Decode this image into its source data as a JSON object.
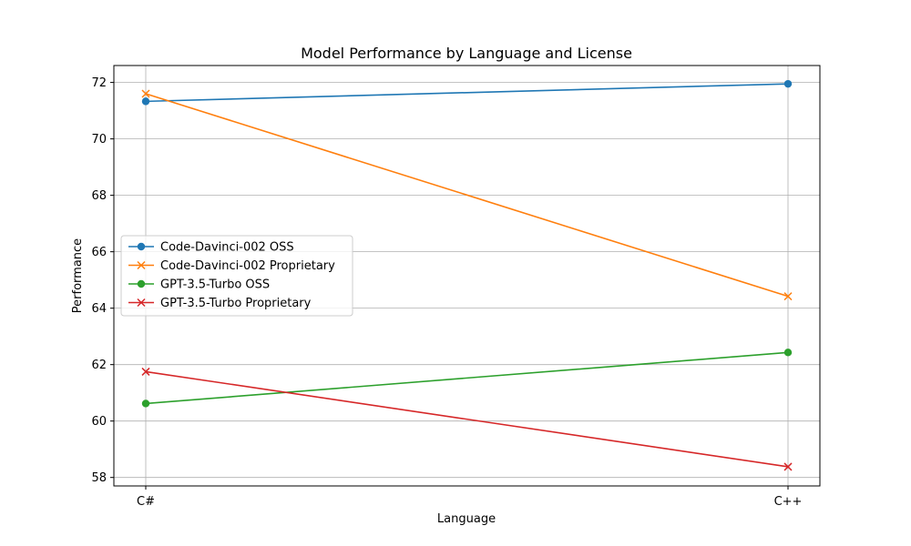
{
  "chart_data": {
    "type": "line",
    "title": "Model Performance by Language and License",
    "xlabel": "Language",
    "ylabel": "Performance",
    "categories": [
      "C#",
      "C++"
    ],
    "ylim": [
      57.7,
      72.6
    ],
    "yticks": [
      58,
      60,
      62,
      64,
      66,
      68,
      70,
      72
    ],
    "grid": true,
    "legend_position": "center-left",
    "series": [
      {
        "name": "Code-Davinci-002 OSS",
        "values": [
          71.33,
          71.95
        ],
        "color": "#1f77b4",
        "marker": "circle"
      },
      {
        "name": "Code-Davinci-002 Proprietary",
        "values": [
          71.6,
          64.42
        ],
        "color": "#ff7f0e",
        "marker": "x"
      },
      {
        "name": "GPT-3.5-Turbo OSS",
        "values": [
          60.62,
          62.43
        ],
        "color": "#2ca02c",
        "marker": "circle"
      },
      {
        "name": "GPT-3.5-Turbo Proprietary",
        "values": [
          61.75,
          58.38
        ],
        "color": "#d62728",
        "marker": "x"
      }
    ]
  }
}
